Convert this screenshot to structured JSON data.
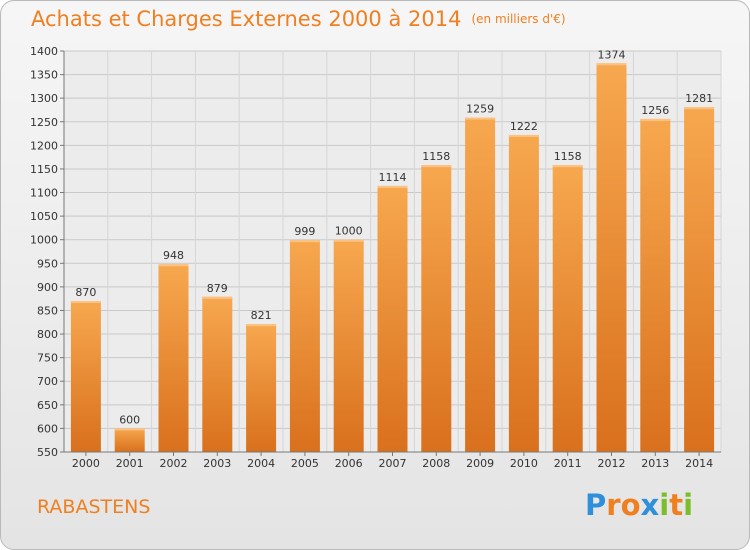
{
  "title": "Achats et Charges Externes 2000 à 2014",
  "unit": "(en milliers d'€)",
  "place": "RABASTENS",
  "logo": {
    "letters": [
      "P",
      "r",
      "o",
      "x",
      "i",
      "t",
      "i"
    ],
    "colors": [
      "#2f8fd8",
      "#f07f20",
      "#f07f20",
      "#2f8fd8",
      "#7cbd2c",
      "#f07f20",
      "#7cbd2c"
    ]
  },
  "colors": {
    "accent": "#f07f20",
    "bar_top": "#f7a84f",
    "bar_bottom": "#d9701d"
  },
  "chart_data": {
    "type": "bar",
    "categories": [
      "2000",
      "2001",
      "2002",
      "2003",
      "2004",
      "2005",
      "2006",
      "2007",
      "2008",
      "2009",
      "2010",
      "2011",
      "2012",
      "2013",
      "2014"
    ],
    "values": [
      870,
      600,
      948,
      879,
      821,
      999,
      1000,
      1114,
      1158,
      1259,
      1222,
      1158,
      1374,
      1256,
      1281
    ],
    "ylim": [
      550,
      1400
    ],
    "yticks": [
      550,
      600,
      650,
      700,
      750,
      800,
      850,
      900,
      950,
      1000,
      1050,
      1100,
      1150,
      1200,
      1250,
      1300,
      1350,
      1400
    ],
    "grid": true,
    "title": "Achats et Charges Externes 2000 à 2014",
    "xlabel": "",
    "ylabel": ""
  }
}
